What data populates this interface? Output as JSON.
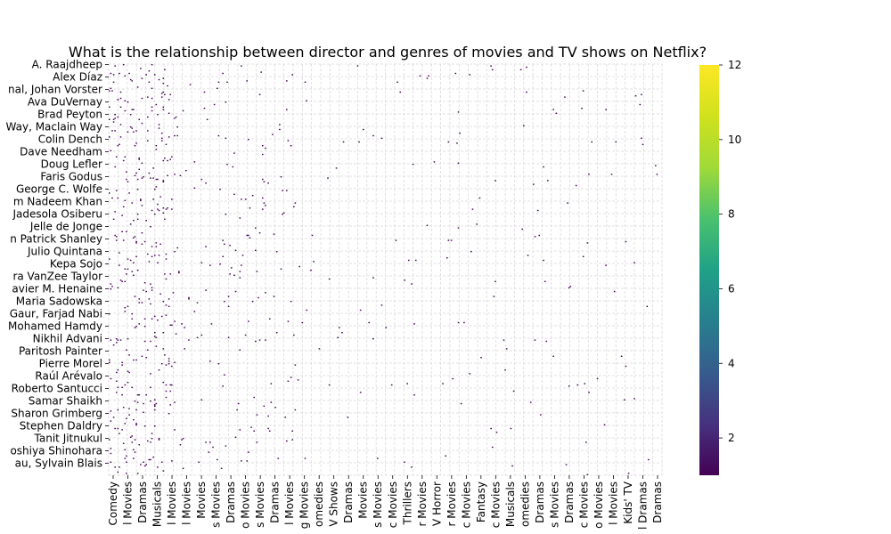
{
  "chart_data": {
    "type": "heatmap",
    "title": "What is the relationship between director and genres of movies and TV shows on Netflix?",
    "xlabel": "",
    "ylabel": "",
    "grid": true,
    "colormap": "viridis",
    "colorbar": {
      "min": 1,
      "max": 12,
      "ticks": [
        2,
        4,
        6,
        8,
        10,
        12
      ]
    },
    "y_tick_labels": [
      "A. Raajdheep",
      "Alex Díaz",
      "nal, Johan Vorster",
      "Ava DuVernay",
      "Brad Peyton",
      "Way, Maclain Way",
      "Colin Dench",
      "Dave Needham",
      "Doug Lefler",
      "Faris Godus",
      "George C. Wolfe",
      "m Nadeem Khan",
      "Jadesola Osiberu",
      "Jelle de Jonge",
      "n Patrick Shanley",
      "Julio Quintana",
      "Kepa Sojo",
      "ra VanZee Taylor",
      "avier M. Henaine",
      "Maria Sadowska",
      "Gaur, Farjad Nabi",
      "Mohamed Hamdy",
      "Nikhil Advani",
      "Paritosh Painter",
      "Pierre Morel",
      "Raúl Arévalo",
      "Roberto Santucci",
      "Samar Shaikh",
      "Sharon Grimberg",
      "Stephen Daldry",
      "Tanit Jitnukul",
      "oshiya Shinohara",
      "au, Sylvain Blais"
    ],
    "x_tick_labels": [
      "Comedy",
      "l Movies",
      "Dramas",
      "Musicals",
      "l Movies",
      "l Movies",
      "Movies",
      "s Movies",
      "Dramas",
      "o Movies",
      "s Movies",
      "Dramas",
      "l Movies",
      "g Movies",
      "omedies",
      "V Shows",
      "Dramas",
      "Movies",
      "s Movies",
      "c Movies",
      "Thrillers",
      "r Movies",
      "V Horror",
      "r Movies",
      "c Movies",
      "Fantasy",
      "c Movies",
      "Musicals",
      "omedies",
      "Dramas",
      "s Movies",
      "Dramas",
      "c Movies",
      "o Movies",
      "l Movies",
      "Kids' TV",
      "l Dramas",
      "Dramas"
    ],
    "note_cells": "Sparse matrix of director × genre counts; nearly all non-empty cells have value 1 (dark purple)."
  }
}
